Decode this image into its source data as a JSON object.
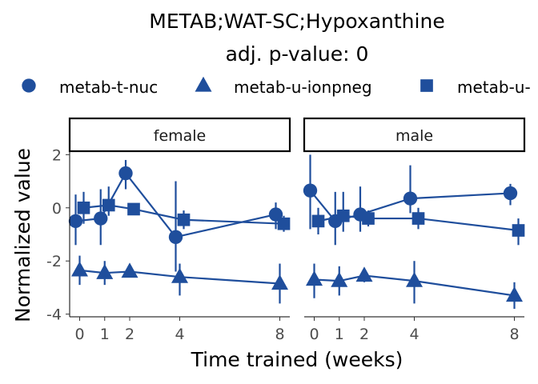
{
  "chart_data": {
    "type": "line",
    "title": "METAB;WAT-SC;Hypoxanthine",
    "subtitle": "adj. p-value: 0",
    "xlabel": "Time trained (weeks)",
    "ylabel": "Normalized value",
    "x_ticks": [
      0,
      1,
      2,
      4,
      8
    ],
    "y_ticks": [
      2,
      0,
      -2,
      -4
    ],
    "ylim": [
      -4.1,
      2.1
    ],
    "legend_position": "top",
    "color": "#1f4e9c",
    "panels": [
      {
        "label": "female",
        "series": [
          {
            "name": "metab-t-nuc",
            "marker": "circle",
            "points": [
              {
                "x": 0,
                "y": -0.5,
                "lo": -1.4,
                "hi": 0.5
              },
              {
                "x": 1,
                "y": -0.4,
                "lo": -1.4,
                "hi": 0.7
              },
              {
                "x": 2,
                "y": 1.3,
                "lo": 0.7,
                "hi": 1.8
              },
              {
                "x": 4,
                "y": -1.1,
                "lo": -2.4,
                "hi": 1.0
              },
              {
                "x": 8,
                "y": -0.25,
                "lo": -0.8,
                "hi": 0.2
              }
            ]
          },
          {
            "name": "metab-u-ionpneg",
            "marker": "triangle",
            "points": [
              {
                "x": 0,
                "y": -2.35,
                "lo": -2.9,
                "hi": -1.8
              },
              {
                "x": 1,
                "y": -2.45,
                "lo": -2.9,
                "hi": -2.0
              },
              {
                "x": 2,
                "y": -2.4,
                "lo": -2.6,
                "hi": -2.2
              },
              {
                "x": 4,
                "y": -2.6,
                "lo": -3.3,
                "hi": -2.1
              },
              {
                "x": 8,
                "y": -2.85,
                "lo": -3.6,
                "hi": -2.1
              }
            ]
          },
          {
            "name": "metab-u-",
            "marker": "square",
            "points": [
              {
                "x": 0,
                "y": 0.0,
                "lo": -0.6,
                "hi": 0.6
              },
              {
                "x": 1,
                "y": 0.1,
                "lo": -0.3,
                "hi": 0.8
              },
              {
                "x": 2,
                "y": -0.05,
                "lo": -0.2,
                "hi": 0.1
              },
              {
                "x": 4,
                "y": -0.45,
                "lo": -0.8,
                "hi": -0.1
              },
              {
                "x": 8,
                "y": -0.6,
                "lo": -0.9,
                "hi": -0.3
              }
            ]
          }
        ]
      },
      {
        "label": "male",
        "series": [
          {
            "name": "metab-t-nuc",
            "marker": "circle",
            "points": [
              {
                "x": 0,
                "y": 0.65,
                "lo": -0.8,
                "hi": 2.0
              },
              {
                "x": 1,
                "y": -0.5,
                "lo": -1.4,
                "hi": 0.6
              },
              {
                "x": 2,
                "y": -0.25,
                "lo": -0.9,
                "hi": 0.8
              },
              {
                "x": 4,
                "y": 0.35,
                "lo": -0.2,
                "hi": 1.6
              },
              {
                "x": 8,
                "y": 0.55,
                "lo": 0.1,
                "hi": 0.9
              }
            ]
          },
          {
            "name": "metab-u-ionpneg",
            "marker": "triangle",
            "points": [
              {
                "x": 0,
                "y": -2.7,
                "lo": -3.4,
                "hi": -2.1
              },
              {
                "x": 1,
                "y": -2.75,
                "lo": -3.3,
                "hi": -2.2
              },
              {
                "x": 2,
                "y": -2.55,
                "lo": -2.8,
                "hi": -2.3
              },
              {
                "x": 4,
                "y": -2.75,
                "lo": -3.6,
                "hi": -2.0
              },
              {
                "x": 8,
                "y": -3.3,
                "lo": -3.8,
                "hi": -2.8
              }
            ]
          },
          {
            "name": "metab-u-",
            "marker": "square",
            "points": [
              {
                "x": 0,
                "y": -0.5,
                "lo": -1.0,
                "hi": 0.0
              },
              {
                "x": 1,
                "y": -0.3,
                "lo": -0.9,
                "hi": 0.6
              },
              {
                "x": 2,
                "y": -0.4,
                "lo": -0.7,
                "hi": -0.1
              },
              {
                "x": 4,
                "y": -0.4,
                "lo": -0.8,
                "hi": 0.0
              },
              {
                "x": 8,
                "y": -0.85,
                "lo": -1.4,
                "hi": -0.4
              }
            ]
          }
        ]
      }
    ],
    "legend": [
      {
        "label": "metab-t-nuc",
        "marker": "circle"
      },
      {
        "label": "metab-u-ionpneg",
        "marker": "triangle"
      },
      {
        "label": "metab-u-",
        "marker": "square"
      }
    ]
  }
}
